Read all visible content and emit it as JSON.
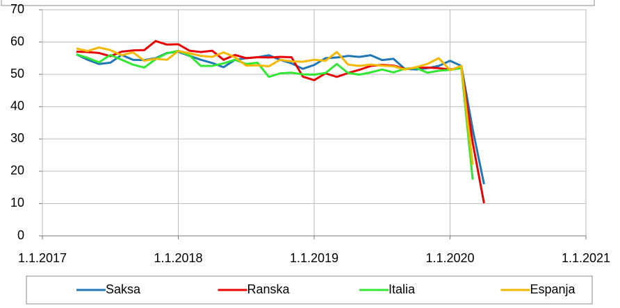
{
  "chart_data": {
    "type": "line",
    "x": [
      "1.4.2017",
      "1.5.2017",
      "1.6.2017",
      "1.7.2017",
      "1.8.2017",
      "1.9.2017",
      "1.10.2017",
      "1.11.2017",
      "1.12.2017",
      "1.1.2018",
      "1.2.2018",
      "1.3.2018",
      "1.4.2018",
      "1.5.2018",
      "1.6.2018",
      "1.7.2018",
      "1.8.2018",
      "1.9.2018",
      "1.10.2018",
      "1.11.2018",
      "1.12.2018",
      "1.1.2019",
      "1.2.2019",
      "1.3.2019",
      "1.4.2019",
      "1.5.2019",
      "1.6.2019",
      "1.7.2019",
      "1.8.2019",
      "1.9.2019",
      "1.10.2019",
      "1.11.2019",
      "1.12.2019",
      "1.1.2020",
      "1.2.2020",
      "1.3.2020",
      "1.4.2020"
    ],
    "series": [
      {
        "name": "Saksa",
        "color": "#1f77b4",
        "values": [
          56.2,
          54.5,
          53.2,
          53.6,
          56.0,
          54.5,
          54.4,
          55.0,
          56.6,
          57.0,
          55.7,
          54.5,
          53.5,
          52.2,
          54.5,
          55.0,
          55.3,
          55.9,
          54.5,
          53.4,
          51.7,
          52.9,
          55.0,
          55.2,
          55.7,
          55.4,
          55.9,
          54.4,
          54.8,
          51.7,
          51.5,
          51.9,
          52.6,
          54.2,
          52.6,
          33.0,
          16.0
        ]
      },
      {
        "name": "Ranska",
        "color": "#e80000",
        "values": [
          57.0,
          56.9,
          56.6,
          55.6,
          57.0,
          57.4,
          57.5,
          60.3,
          59.2,
          59.3,
          57.3,
          56.9,
          57.3,
          54.5,
          56.0,
          55.0,
          55.3,
          55.2,
          55.4,
          55.3,
          49.3,
          48.2,
          50.3,
          49.2,
          50.4,
          51.4,
          52.6,
          52.9,
          52.7,
          51.7,
          52.0,
          52.1,
          51.9,
          51.5,
          52.0,
          28.9,
          10.1
        ]
      },
      {
        "name": "Italia",
        "color": "#33e633",
        "values": [
          56.2,
          55.1,
          53.7,
          56.0,
          54.5,
          53.0,
          52.1,
          54.7,
          56.5,
          57.3,
          55.8,
          52.6,
          52.6,
          53.4,
          54.5,
          53.2,
          53.6,
          49.2,
          50.3,
          50.5,
          50.0,
          49.9,
          50.4,
          53.2,
          50.4,
          49.9,
          50.6,
          51.5,
          50.6,
          51.7,
          52.0,
          50.5,
          51.1,
          51.4,
          51.9,
          17.4,
          null
        ]
      },
      {
        "name": "Espanja",
        "color": "#f5b800",
        "values": [
          58.0,
          57.2,
          58.3,
          57.5,
          55.9,
          56.8,
          54.2,
          54.8,
          54.5,
          57.2,
          56.5,
          55.7,
          55.4,
          56.8,
          55.3,
          52.7,
          52.8,
          52.5,
          54.5,
          54.0,
          53.9,
          54.5,
          54.2,
          56.9,
          53.0,
          52.6,
          53.0,
          52.7,
          52.5,
          51.5,
          52.2,
          53.2,
          55.0,
          51.3,
          52.6,
          22.0,
          null
        ]
      }
    ],
    "xlim": [
      "1.1.2017",
      "1.1.2021"
    ],
    "xticks": [
      "1.1.2017",
      "1.1.2018",
      "1.1.2019",
      "1.1.2020",
      "1.1.2021"
    ],
    "ylim": [
      0,
      70
    ],
    "yticks": [
      0,
      10,
      20,
      30,
      40,
      50,
      60,
      70
    ],
    "grid": true,
    "legend": "bottom"
  }
}
